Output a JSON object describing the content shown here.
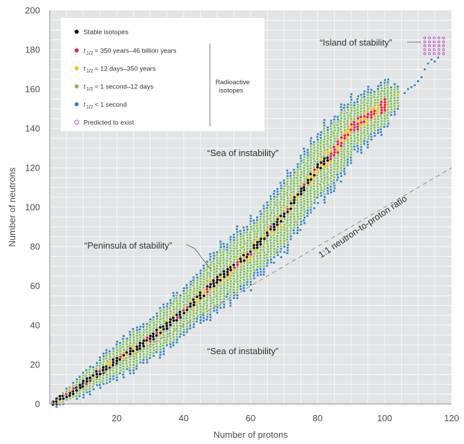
{
  "chart_data": {
    "type": "scatter",
    "xlabel": "Number of protons",
    "ylabel": "Number of neutrons",
    "xlim": [
      0,
      120
    ],
    "ylim": [
      0,
      200
    ],
    "x_ticks": [
      20,
      40,
      60,
      80,
      100,
      120
    ],
    "y_ticks": [
      0,
      20,
      40,
      60,
      80,
      100,
      120,
      140,
      160,
      180,
      200
    ],
    "grid": true,
    "legend_position": "top-left",
    "colors": {
      "stable": "#111111",
      "long": "#e8264c",
      "medium": "#f2c10f",
      "short": "#7dc24d",
      "very_short": "#2e86c9",
      "predicted": "#b43fb1",
      "background": "#e3e4e6",
      "grid": "#ffffff",
      "ratio_line": "#9a9a9a"
    },
    "legend": {
      "stable": "Stable isotopes",
      "t_long_range": "= 350 years–46 billion years",
      "t_medium_range": "= 12 days–350 years",
      "t_short_range": "= 1 second–12 days",
      "t_very_short_range": "< 1 second",
      "half_life_symbol": "t",
      "half_life_sub": "1/2",
      "predicted": "Predicted to exist",
      "radioactive_group_line1": "Radioactive",
      "radioactive_group_line2": "isotopes"
    },
    "annotations": {
      "island": "“Island of stability”",
      "sea_upper": "“Sea of instability”",
      "sea_lower": "“Sea of instability”",
      "peninsula": "“Peninsula of stability”",
      "ratio_line": "1:1 neutron-to-proton ratio"
    },
    "band_centerline": [
      [
        1,
        0
      ],
      [
        10,
        10
      ],
      [
        20,
        22
      ],
      [
        30,
        33
      ],
      [
        40,
        47
      ],
      [
        50,
        63
      ],
      [
        60,
        77
      ],
      [
        70,
        96
      ],
      [
        80,
        120
      ],
      [
        84,
        126
      ],
      [
        90,
        140
      ],
      [
        100,
        152
      ],
      [
        104,
        156
      ]
    ],
    "band_half_width": [
      [
        1,
        2
      ],
      [
        10,
        6
      ],
      [
        20,
        9
      ],
      [
        30,
        12
      ],
      [
        40,
        13
      ],
      [
        50,
        16
      ],
      [
        60,
        17
      ],
      [
        70,
        19
      ],
      [
        80,
        19
      ],
      [
        85,
        20
      ],
      [
        90,
        16
      ],
      [
        100,
        12
      ],
      [
        104,
        6
      ]
    ],
    "stable_band": {
      "z_range": [
        1,
        83
      ],
      "half_width": 2
    },
    "long_lived_band": {
      "z_range": [
        84,
        100
      ]
    },
    "very_short_tail": [
      [
        106,
        158
      ],
      [
        107,
        160
      ],
      [
        108,
        161
      ],
      [
        109,
        162
      ],
      [
        110,
        164
      ],
      [
        111,
        166
      ],
      [
        112,
        170
      ],
      [
        113,
        173
      ],
      [
        114,
        175
      ],
      [
        115,
        174
      ],
      [
        116,
        176
      ]
    ],
    "predicted_island": {
      "z_range": [
        112,
        118
      ],
      "n_range": [
        178,
        186
      ]
    },
    "ratio_line": {
      "from": [
        0,
        0
      ],
      "to": [
        120,
        120
      ]
    }
  }
}
